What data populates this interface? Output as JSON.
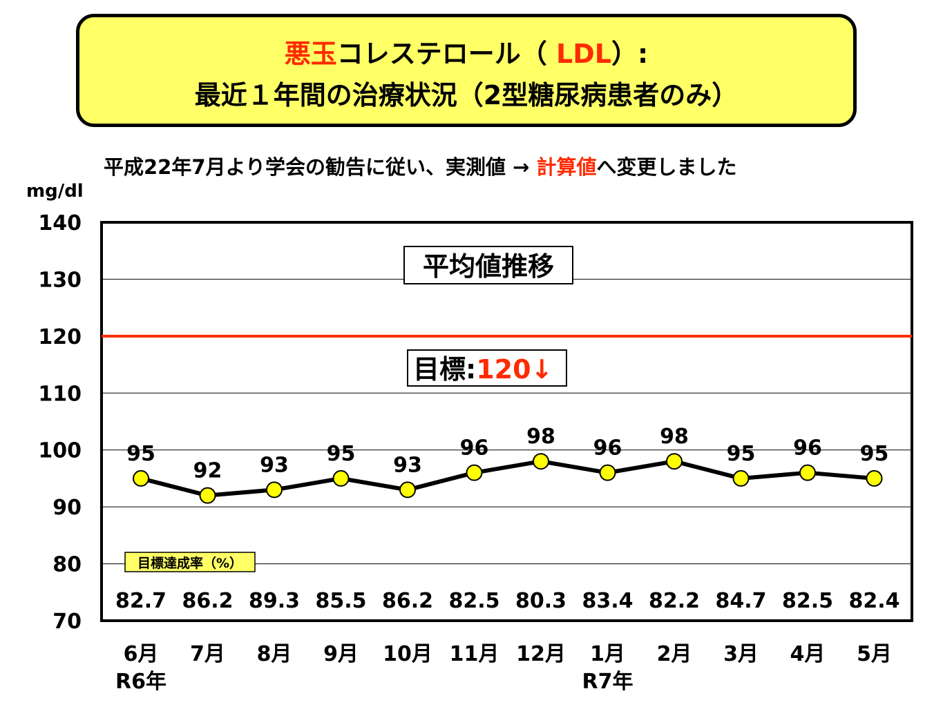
{
  "title": {
    "line1_red": "悪玉",
    "line1_a": "コレステロール（ ",
    "line1_red2": "LDL",
    "line1_b": "）:",
    "line2": "最近１年間の治療状況（2型糖尿病患者のみ）"
  },
  "note": {
    "text_a": "平成22年7月より学会の勧告に従い、実測値 → ",
    "text_red": "計算値",
    "text_b": "へ変更しました"
  },
  "unit": "mg/dl",
  "chart_data": {
    "type": "line",
    "box_label": "平均値推移",
    "ylim": [
      70,
      140
    ],
    "yticks": [
      140,
      130,
      120,
      110,
      100,
      90,
      80,
      70
    ],
    "categories": [
      "6月",
      "7月",
      "8月",
      "9月",
      "10月",
      "11月",
      "12月",
      "1月",
      "2月",
      "3月",
      "4月",
      "5月"
    ],
    "year_labels": [
      {
        "index": 0,
        "text": "R6年"
      },
      {
        "index": 7,
        "text": "R7年"
      }
    ],
    "values": [
      95,
      92,
      93,
      95,
      93,
      96,
      98,
      96,
      98,
      95,
      96,
      95
    ],
    "target": {
      "value": 120,
      "label": "目標:",
      "label_value": "120↓",
      "color": "#ff2a00"
    },
    "achievement": {
      "label": "目標達成率（%）",
      "values": [
        "82.7",
        "86.2",
        "89.3",
        "85.5",
        "86.2",
        "82.5",
        "80.3",
        "83.4",
        "82.2",
        "84.7",
        "82.5",
        "82.4"
      ]
    },
    "colors": {
      "line": "#000000",
      "marker": "#ffff00",
      "target_line": "#ff2a00",
      "grid": "#000000"
    },
    "grid": true
  }
}
